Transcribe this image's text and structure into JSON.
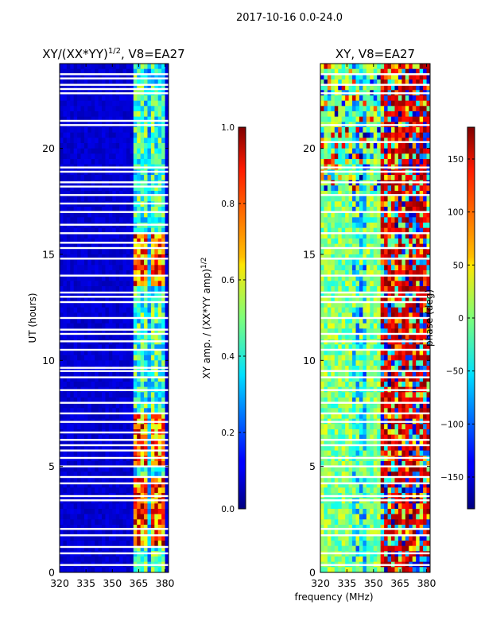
{
  "figure": {
    "suptitle": "2017-10-16 0.0-24.0",
    "xlabel": "frequency (MHz)"
  },
  "chart_data": [
    {
      "type": "heatmap",
      "title": "XY/(XX*YY)",
      "title_exponent": "1/2",
      "title_suffix": ", V8=EA27",
      "xlabel": "frequency (MHz)",
      "ylabel": "UT (hours)",
      "xlim": [
        320,
        382
      ],
      "ylim": [
        0,
        24
      ],
      "xticks": [
        320,
        335,
        350,
        365,
        380
      ],
      "yticks": [
        0,
        5,
        10,
        15,
        20
      ],
      "colormap": "jet",
      "colorbar": {
        "label": "XY amp. / (XX*YY amp)",
        "label_exponent": "1/2",
        "range": [
          0.0,
          1.0
        ],
        "ticks": [
          "0.0",
          "0.2",
          "0.4",
          "0.6",
          "0.8",
          "1.0"
        ]
      },
      "summary": {
        "low_band_MHz": [
          320,
          362
        ],
        "low_band_value": 0.05,
        "high_band_MHz": [
          362,
          380
        ],
        "high_band_value_range": [
          0.4,
          1.0
        ],
        "strong_intervals_UT": [
          [
            1.2,
            4.5
          ],
          [
            5.0,
            7.5
          ],
          [
            13.5,
            16.0
          ]
        ]
      },
      "gap_rows_UT": [
        0.35,
        0.9,
        1.2,
        1.75,
        2.05,
        3.4,
        3.6,
        4.2,
        4.5,
        5.0,
        5.4,
        5.75,
        6.0,
        6.25,
        6.6,
        7.1,
        7.5,
        8.0,
        8.6,
        9.2,
        9.5,
        9.65,
        10.5,
        10.9,
        11.25,
        11.45,
        12.0,
        12.75,
        13.0,
        13.2,
        14.0,
        14.8,
        15.3,
        15.55,
        16.0,
        16.4,
        17.0,
        17.4,
        17.8,
        18.2,
        18.4,
        18.9,
        19.1,
        21.1,
        21.3,
        22.6,
        22.8,
        23.0,
        23.3,
        23.5
      ]
    },
    {
      "type": "heatmap",
      "title": "XY, V8=EA27",
      "xlabel": "frequency (MHz)",
      "ylabel": "",
      "xlim": [
        320,
        382
      ],
      "ylim": [
        0,
        24
      ],
      "xticks": [
        320,
        335,
        350,
        365,
        380
      ],
      "yticks": [
        0,
        5,
        10,
        15,
        20
      ],
      "colormap": "jet",
      "colorbar": {
        "label": "phase (deg)",
        "range": [
          -180,
          180
        ],
        "ticks": [
          "−150",
          "−100",
          "−50",
          "0",
          "50",
          "100",
          "150"
        ]
      },
      "summary": {
        "low_band_MHz": [
          320,
          355
        ],
        "low_band_phase_deg": [
          -40,
          40
        ],
        "high_band_MHz": [
          355,
          382
        ],
        "high_band_phase_deg": [
          -180,
          180
        ],
        "vertical_stripes_MHz": [
          337,
          347
        ]
      },
      "gap_rows_UT": [
        0.35,
        0.9,
        1.75,
        2.05,
        3.4,
        3.6,
        4.2,
        4.5,
        5.0,
        5.4,
        6.0,
        6.25,
        7.1,
        7.5,
        8.0,
        8.6,
        9.2,
        9.5,
        10.5,
        10.9,
        11.25,
        12.0,
        12.75,
        13.0,
        13.2,
        14.0,
        14.8,
        15.3,
        16.0,
        17.0,
        17.8,
        18.4,
        18.9,
        19.1,
        20.3,
        21.1,
        22.6,
        23.0,
        23.5
      ]
    }
  ]
}
